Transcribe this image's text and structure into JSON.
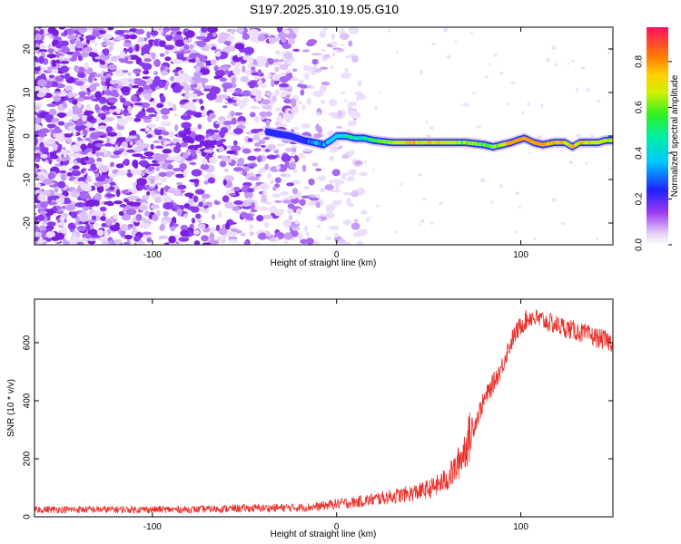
{
  "title": "S197.2025.310.19.05.G10",
  "colors": {
    "snr_line": "#e8322c",
    "frame": "#000000"
  },
  "chart_data": [
    {
      "type": "heatmap",
      "xlabel": "Height of straight line (km)",
      "ylabel": "Frequency (Hz)",
      "xlim": [
        -164,
        150
      ],
      "ylim": [
        -25,
        25
      ],
      "x_ticks": [
        {
          "value": -100,
          "label": "-100"
        },
        {
          "value": 0,
          "label": "0"
        },
        {
          "value": 100,
          "label": "100"
        }
      ],
      "y_ticks": [
        {
          "value": -20,
          "label": "-20"
        },
        {
          "value": -10,
          "label": "-10"
        },
        {
          "value": 0,
          "label": "0"
        },
        {
          "value": 10,
          "label": "10"
        },
        {
          "value": 20,
          "label": "20"
        }
      ],
      "colorbar": {
        "label": "Normalized spectral amplitude",
        "range": [
          0,
          0.95
        ],
        "ticks": [
          {
            "value": 0.0,
            "label": "0.0"
          },
          {
            "value": 0.2,
            "label": "0.2"
          },
          {
            "value": 0.4,
            "label": "0.4"
          },
          {
            "value": 0.6,
            "label": "0.6"
          },
          {
            "value": 0.8,
            "label": "0.8"
          }
        ]
      },
      "noise_region_x": [
        -164,
        -10
      ],
      "signal_trace": {
        "x": [
          -38,
          -32,
          -25,
          -18,
          -12,
          -7,
          -3,
          0,
          5,
          10,
          15,
          20,
          30,
          40,
          50,
          60,
          70,
          80,
          85,
          90,
          95,
          98,
          102,
          107,
          112,
          118,
          124,
          128,
          132,
          137,
          142,
          146,
          150
        ],
        "freq": [
          1,
          0.5,
          0,
          -1,
          -1.5,
          -2,
          -1,
          0,
          0,
          -0.5,
          -0.5,
          -1,
          -1.5,
          -1.5,
          -1.5,
          -1.5,
          -1.5,
          -2,
          -2.5,
          -2,
          -1.5,
          -1,
          -0.5,
          -1.5,
          -2,
          -1.5,
          -1.5,
          -2.5,
          -1.5,
          -1.5,
          -1.5,
          -1,
          -1
        ],
        "amplitude": [
          0.2,
          0.3,
          0.3,
          0.35,
          0.4,
          0.45,
          0.5,
          0.55,
          0.55,
          0.55,
          0.6,
          0.65,
          0.75,
          0.85,
          0.85,
          0.8,
          0.75,
          0.7,
          0.7,
          0.8,
          0.95,
          0.95,
          0.95,
          0.95,
          0.95,
          0.9,
          0.9,
          0.85,
          0.85,
          0.85,
          0.8,
          0.75,
          0.75
        ]
      }
    },
    {
      "type": "line",
      "xlabel": "Height of straight line (km)",
      "ylabel": "SNR (10 * v/v)",
      "xlim": [
        -164,
        150
      ],
      "ylim": [
        0,
        750
      ],
      "x_ticks": [
        {
          "value": -100,
          "label": "-100"
        },
        {
          "value": 0,
          "label": "0"
        },
        {
          "value": 100,
          "label": "100"
        }
      ],
      "y_ticks": [
        {
          "value": 0,
          "label": "0"
        },
        {
          "value": 200,
          "label": "200"
        },
        {
          "value": 400,
          "label": "400"
        },
        {
          "value": 600,
          "label": "600"
        }
      ],
      "series": [
        {
          "x": [
            -164,
            -140,
            -120,
            -100,
            -80,
            -60,
            -40,
            -20,
            -10,
            0,
            10,
            20,
            30,
            40,
            50,
            55,
            60,
            65,
            70,
            75,
            80,
            85,
            90,
            92,
            96,
            100,
            105,
            110,
            115,
            120,
            125,
            130,
            135,
            140,
            145,
            150
          ],
          "y": [
            25,
            25,
            25,
            25,
            25,
            28,
            30,
            32,
            35,
            45,
            50,
            60,
            70,
            80,
            95,
            110,
            130,
            170,
            240,
            320,
            400,
            460,
            520,
            560,
            620,
            660,
            690,
            680,
            670,
            660,
            650,
            640,
            630,
            620,
            610,
            600
          ]
        }
      ]
    }
  ]
}
